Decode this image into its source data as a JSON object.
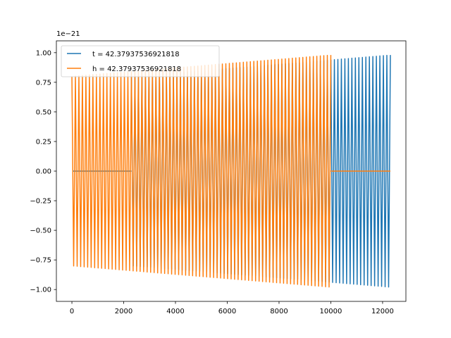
{
  "chart_data": {
    "type": "line",
    "title": "",
    "xlabel": "",
    "ylabel": "",
    "offset_text": "1e−21",
    "xlim": [
      -600,
      12900
    ],
    "ylim": [
      -1.1,
      1.1
    ],
    "x_ticks": [
      0,
      2000,
      4000,
      6000,
      8000,
      10000,
      12000
    ],
    "x_tick_labels": [
      "0",
      "2000",
      "4000",
      "6000",
      "8000",
      "10000",
      "12000"
    ],
    "y_ticks": [
      -1.0,
      -0.75,
      -0.5,
      -0.25,
      0.0,
      0.25,
      0.5,
      0.75,
      1.0
    ],
    "y_tick_labels": [
      "−1.00",
      "−0.75",
      "−0.50",
      "−0.25",
      "0.00",
      "0.25",
      "0.50",
      "0.75",
      "1.00"
    ],
    "grid": false,
    "legend_position": "top-left",
    "series": [
      {
        "name": "t = 42.37937536921818",
        "color": "#1f77b4",
        "segments": [
          {
            "type": "flat",
            "x_start": 50,
            "x_end": 2300,
            "value": 0.0
          },
          {
            "type": "oscillation",
            "x_start": 2300,
            "x_end": 12300,
            "amplitude_start": 0.8,
            "amplitude_end": 0.98,
            "cycles": 74
          }
        ]
      },
      {
        "name": "h = 42.37937536921818",
        "color": "#ff7f0e",
        "segments": [
          {
            "type": "oscillation",
            "x_start": 0,
            "x_end": 10000,
            "amplitude_start": 0.8,
            "amplitude_end": 0.98,
            "cycles": 74
          },
          {
            "type": "flat",
            "x_start": 10000,
            "x_end": 12300,
            "value": 0.0
          }
        ]
      }
    ]
  }
}
